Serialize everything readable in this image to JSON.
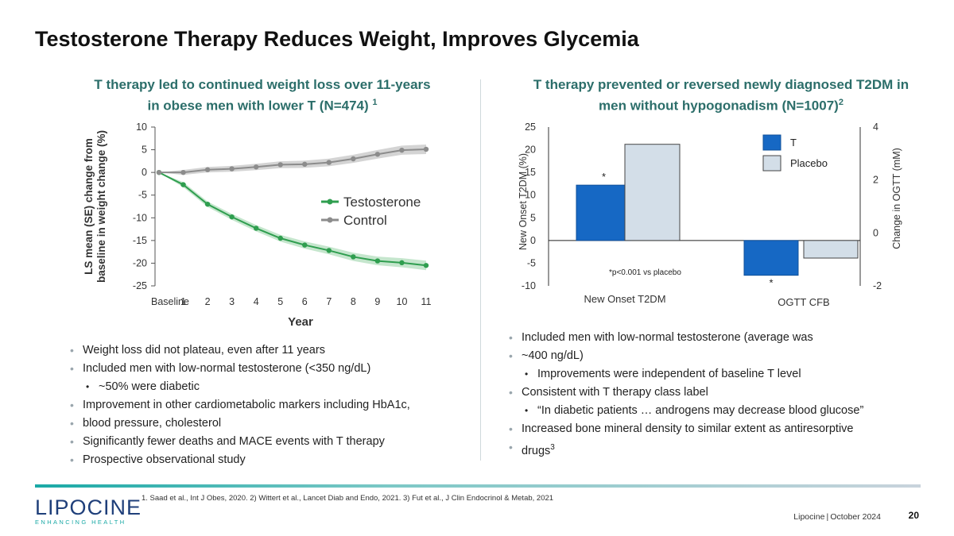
{
  "slide": {
    "title": "Testosterone Therapy Reduces Weight, Improves Glycemia",
    "page_number": "20",
    "footer_company": "Lipocine",
    "footer_date": "October 2024",
    "references": "1. Saad et al., Int J Obes, 2020. 2) Wittert et al., Lancet Diab and Endo, 2021. 3) Fut et al., J Clin Endocrinol & Metab, 2021"
  },
  "logo": {
    "word": "LIPOCINE",
    "tagline": "ENHANCING HEALTH"
  },
  "left": {
    "heading_line1": "T therapy led to continued weight loss over 11-years",
    "heading_line2": "in obese men with lower T (N=474)",
    "heading_ref": "1",
    "bullets": [
      {
        "text": "Weight loss did not plateau, even after 11 years"
      },
      {
        "text": "Included men with low-normal testosterone (<350 ng/dL)"
      },
      {
        "text": "~50% were diabetic"
      },
      {
        "text": "Improvement in other cardiometabolic markers including HbA1c,"
      },
      {
        "text": "blood pressure, cholesterol"
      },
      {
        "text": "Significantly fewer deaths and MACE events with T therapy"
      },
      {
        "text": "Prospective observational study"
      }
    ]
  },
  "right": {
    "heading_line1": "T therapy prevented or reversed newly diagnosed T2DM in",
    "heading_line2": "men without hypogonadism (N=1007)",
    "heading_ref": "2",
    "bullets": [
      {
        "text": "Included men with low-normal testosterone (average was"
      },
      {
        "text": "~400 ng/dL)"
      },
      {
        "text": "Improvements were independent of baseline T level"
      },
      {
        "text": "Consistent with T therapy class label"
      },
      {
        "text": "“In diabetic patients … androgens may decrease blood glucose”"
      },
      {
        "text": "Increased bone mineral density to similar extent as antiresorptive"
      },
      {
        "text": "drugs",
        "ref": "3"
      }
    ]
  },
  "colors": {
    "accent_teal": "#2c6e6a",
    "testosterone_green": "#2f9e4f",
    "control_gray": "#8c8c8c",
    "t_blue": "#1668c4",
    "placebo_lightblue": "#d3dee8"
  },
  "chart_data": [
    {
      "type": "line",
      "title": "",
      "xlabel": "Year",
      "ylabel": "LS mean (SE) change from baseline in weight change (%)",
      "ylabel_line1": "LS mean (SE) change from",
      "ylabel_line2": "baseline in weight change (%)",
      "x": [
        "Baseline",
        "1",
        "2",
        "3",
        "4",
        "5",
        "6",
        "7",
        "8",
        "9",
        "10",
        "11"
      ],
      "yticks": [
        "10",
        "5",
        "0",
        "-5",
        "-10",
        "-15",
        "-20",
        "-25"
      ],
      "ylim": [
        -25,
        10
      ],
      "series": [
        {
          "name": "Testosterone",
          "values": [
            0,
            -2.7,
            -7.0,
            -9.8,
            -12.3,
            -14.5,
            -16.0,
            -17.2,
            -18.6,
            -19.5,
            -19.9,
            -20.5
          ]
        },
        {
          "name": "Control",
          "values": [
            0,
            0,
            0.6,
            0.8,
            1.2,
            1.7,
            1.8,
            2.2,
            3.0,
            4.0,
            4.9,
            5.1
          ]
        }
      ],
      "legend": "center-right"
    },
    {
      "type": "bar",
      "title": "",
      "categories": [
        "New Onset T2DM",
        "OGTT CFB"
      ],
      "series": [
        {
          "name": "T",
          "values": [
            12.2,
            -1.6
          ]
        },
        {
          "name": "Placebo",
          "values": [
            21.2,
            -0.95
          ]
        }
      ],
      "ylabel_left": "New Onset T2DM (%)",
      "ylabel_right": "Change in OGTT (mM)",
      "yticks_left": [
        "25",
        "20",
        "15",
        "10",
        "5",
        "0",
        "-5",
        "-10"
      ],
      "yticks_right": [
        "4",
        "2",
        "0",
        "-2"
      ],
      "ylim_left": [
        -10,
        25
      ],
      "ylim_right": [
        -2,
        4
      ],
      "star": "*",
      "annotation": "*p<0.001 vs placebo",
      "legend": "top-right"
    }
  ]
}
